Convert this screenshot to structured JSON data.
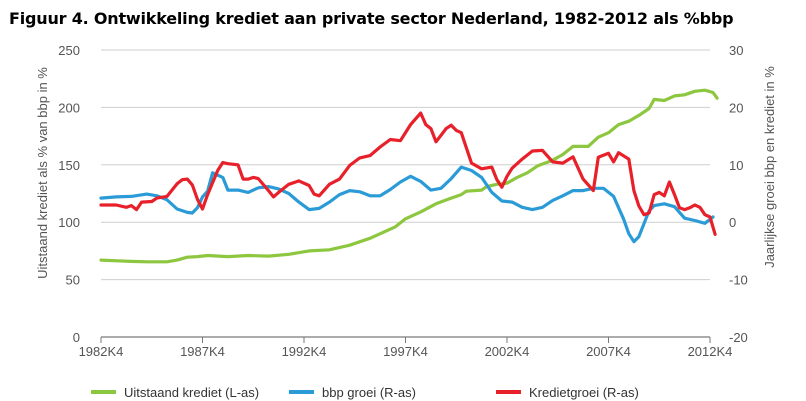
{
  "title": "Figuur 4. Ontwikkeling krediet aan private sector Nederland, 1982-2012 als %bbp",
  "chart_data": {
    "type": "line",
    "title": "Figuur 4. Ontwikkeling krediet aan private sector Nederland, 1982-2012 als %bbp",
    "xlabel": "",
    "ylabel_left": "Uitstaand krediet als % van bbp in %",
    "ylabel_right": "Jaarlijkse groei bbp en krediet in %",
    "x_ticks": [
      "1982K4",
      "1987K4",
      "1992K4",
      "1997K4",
      "2002K4",
      "2007K4",
      "2012K4"
    ],
    "ylim_left": [
      0,
      250
    ],
    "yticks_left": [
      0,
      50,
      100,
      150,
      200,
      250
    ],
    "ylim_right": [
      -20,
      30
    ],
    "yticks_right": [
      -20,
      -10,
      0,
      10,
      20,
      30
    ],
    "grid": "horizontal",
    "legend_position": "bottom",
    "series": [
      {
        "name": "Uitstaand krediet (L-as)",
        "axis": "left",
        "color": "#8dc63f",
        "points": [
          [
            1982.75,
            67
          ],
          [
            1984.0,
            66
          ],
          [
            1985.0,
            65.5
          ],
          [
            1986.0,
            65.5
          ],
          [
            1986.5,
            67
          ],
          [
            1987.0,
            69.5
          ],
          [
            1987.5,
            70
          ],
          [
            1988.0,
            71
          ],
          [
            1989.0,
            70
          ],
          [
            1990.0,
            71
          ],
          [
            1991.0,
            70.5
          ],
          [
            1992.0,
            72
          ],
          [
            1993.0,
            75
          ],
          [
            1994.0,
            76
          ],
          [
            1995.0,
            80
          ],
          [
            1996.0,
            86
          ],
          [
            1996.75,
            92
          ],
          [
            1997.25,
            96
          ],
          [
            1997.75,
            103
          ],
          [
            1998.5,
            109
          ],
          [
            1999.25,
            116
          ],
          [
            2000.0,
            121
          ],
          [
            2000.5,
            124
          ],
          [
            2000.75,
            127
          ],
          [
            2001.5,
            128
          ],
          [
            2001.75,
            131
          ],
          [
            2002.25,
            133
          ],
          [
            2002.75,
            134
          ],
          [
            2003.25,
            139
          ],
          [
            2003.75,
            143
          ],
          [
            2004.25,
            149
          ],
          [
            2005.0,
            154
          ],
          [
            2005.5,
            159
          ],
          [
            2006.0,
            166
          ],
          [
            2006.75,
            166
          ],
          [
            2007.25,
            174
          ],
          [
            2007.75,
            178
          ],
          [
            2008.25,
            185
          ],
          [
            2008.75,
            188
          ],
          [
            2009.25,
            193
          ],
          [
            2009.75,
            199
          ],
          [
            2010.0,
            207
          ],
          [
            2010.5,
            206
          ],
          [
            2011.0,
            210
          ],
          [
            2011.5,
            211
          ],
          [
            2012.0,
            214
          ],
          [
            2012.5,
            215
          ],
          [
            2012.9,
            213
          ],
          [
            2013.1,
            208
          ]
        ]
      },
      {
        "name": "bbp groei (R-as)",
        "axis": "right",
        "color": "#2b9bd8",
        "points": [
          [
            1982.75,
            4.2
          ],
          [
            1983.5,
            4.4
          ],
          [
            1984.25,
            4.5
          ],
          [
            1985.0,
            4.9
          ],
          [
            1985.5,
            4.6
          ],
          [
            1986.0,
            3.9
          ],
          [
            1986.5,
            2.3
          ],
          [
            1987.0,
            1.7
          ],
          [
            1987.25,
            1.6
          ],
          [
            1987.5,
            2.5
          ],
          [
            1987.75,
            4.4
          ],
          [
            1988.0,
            5.4
          ],
          [
            1988.25,
            8.6
          ],
          [
            1988.75,
            7.8
          ],
          [
            1989.0,
            5.6
          ],
          [
            1989.5,
            5.6
          ],
          [
            1990.0,
            5.2
          ],
          [
            1990.5,
            6.0
          ],
          [
            1991.0,
            6.2
          ],
          [
            1991.5,
            5.8
          ],
          [
            1992.0,
            5.0
          ],
          [
            1992.5,
            3.5
          ],
          [
            1993.0,
            2.2
          ],
          [
            1993.5,
            2.4
          ],
          [
            1994.0,
            3.5
          ],
          [
            1994.5,
            4.8
          ],
          [
            1995.0,
            5.5
          ],
          [
            1995.5,
            5.3
          ],
          [
            1996.0,
            4.6
          ],
          [
            1996.5,
            4.6
          ],
          [
            1997.0,
            5.7
          ],
          [
            1997.5,
            7.0
          ],
          [
            1998.0,
            8.0
          ],
          [
            1998.5,
            7.1
          ],
          [
            1999.0,
            5.6
          ],
          [
            1999.5,
            5.9
          ],
          [
            2000.0,
            7.6
          ],
          [
            2000.5,
            9.6
          ],
          [
            2001.0,
            9.0
          ],
          [
            2001.5,
            7.8
          ],
          [
            2002.0,
            5.2
          ],
          [
            2002.5,
            3.7
          ],
          [
            2003.0,
            3.5
          ],
          [
            2003.5,
            2.6
          ],
          [
            2004.0,
            2.2
          ],
          [
            2004.5,
            2.6
          ],
          [
            2005.0,
            3.8
          ],
          [
            2005.5,
            4.6
          ],
          [
            2006.0,
            5.5
          ],
          [
            2006.5,
            5.5
          ],
          [
            2007.0,
            5.9
          ],
          [
            2007.5,
            5.9
          ],
          [
            2008.0,
            4.5
          ],
          [
            2008.5,
            0.5
          ],
          [
            2008.75,
            -2.0
          ],
          [
            2009.0,
            -3.4
          ],
          [
            2009.25,
            -2.5
          ],
          [
            2009.75,
            2.0
          ],
          [
            2010.0,
            2.9
          ],
          [
            2010.5,
            3.2
          ],
          [
            2011.0,
            2.7
          ],
          [
            2011.5,
            0.7
          ],
          [
            2012.0,
            0.3
          ],
          [
            2012.5,
            -0.2
          ],
          [
            2012.9,
            0.9
          ]
        ]
      },
      {
        "name": "Kredietgroei (R-as)",
        "axis": "right",
        "color": "#e8202a",
        "points": [
          [
            1982.75,
            3.0
          ],
          [
            1983.5,
            3.0
          ],
          [
            1984.0,
            2.6
          ],
          [
            1984.25,
            2.9
          ],
          [
            1984.5,
            2.2
          ],
          [
            1984.75,
            3.5
          ],
          [
            1985.25,
            3.6
          ],
          [
            1985.5,
            4.2
          ],
          [
            1986.0,
            4.5
          ],
          [
            1986.5,
            6.7
          ],
          [
            1986.75,
            7.4
          ],
          [
            1987.0,
            7.5
          ],
          [
            1987.25,
            6.5
          ],
          [
            1987.5,
            4.0
          ],
          [
            1987.75,
            2.3
          ],
          [
            1988.0,
            4.8
          ],
          [
            1988.5,
            9.0
          ],
          [
            1988.75,
            10.4
          ],
          [
            1989.0,
            10.2
          ],
          [
            1989.5,
            10.0
          ],
          [
            1989.75,
            7.5
          ],
          [
            1990.0,
            7.5
          ],
          [
            1990.25,
            7.8
          ],
          [
            1990.5,
            7.6
          ],
          [
            1991.0,
            5.5
          ],
          [
            1991.25,
            4.4
          ],
          [
            1991.5,
            5.2
          ],
          [
            1992.0,
            6.6
          ],
          [
            1992.5,
            7.2
          ],
          [
            1993.0,
            6.4
          ],
          [
            1993.25,
            4.9
          ],
          [
            1993.5,
            4.6
          ],
          [
            1994.0,
            6.6
          ],
          [
            1994.5,
            7.5
          ],
          [
            1995.0,
            9.9
          ],
          [
            1995.5,
            11.2
          ],
          [
            1996.0,
            11.6
          ],
          [
            1996.5,
            13.1
          ],
          [
            1997.0,
            14.4
          ],
          [
            1997.5,
            14.2
          ],
          [
            1998.0,
            17.0
          ],
          [
            1998.5,
            19.0
          ],
          [
            1998.75,
            17.0
          ],
          [
            1999.0,
            16.3
          ],
          [
            1999.25,
            14.0
          ],
          [
            1999.75,
            16.3
          ],
          [
            2000.0,
            16.9
          ],
          [
            2000.25,
            16.0
          ],
          [
            2000.5,
            15.6
          ],
          [
            2001.0,
            10.3
          ],
          [
            2001.5,
            9.3
          ],
          [
            2002.0,
            9.6
          ],
          [
            2002.25,
            7.4
          ],
          [
            2002.5,
            6.1
          ],
          [
            2002.75,
            8.0
          ],
          [
            2003.0,
            9.4
          ],
          [
            2003.5,
            11.0
          ],
          [
            2004.0,
            12.4
          ],
          [
            2004.5,
            12.5
          ],
          [
            2005.0,
            10.5
          ],
          [
            2005.5,
            10.3
          ],
          [
            2006.0,
            11.4
          ],
          [
            2006.5,
            7.5
          ],
          [
            2007.0,
            5.5
          ],
          [
            2007.25,
            11.3
          ],
          [
            2007.75,
            12.0
          ],
          [
            2008.0,
            10.5
          ],
          [
            2008.25,
            12.1
          ],
          [
            2008.75,
            11.0
          ],
          [
            2009.0,
            5.5
          ],
          [
            2009.25,
            2.8
          ],
          [
            2009.5,
            1.3
          ],
          [
            2009.75,
            1.6
          ],
          [
            2010.0,
            4.8
          ],
          [
            2010.25,
            5.2
          ],
          [
            2010.5,
            4.6
          ],
          [
            2010.75,
            7.0
          ],
          [
            2011.0,
            4.8
          ],
          [
            2011.25,
            2.5
          ],
          [
            2011.5,
            2.2
          ],
          [
            2011.75,
            2.5
          ],
          [
            2012.0,
            3.0
          ],
          [
            2012.25,
            2.6
          ],
          [
            2012.5,
            1.3
          ],
          [
            2012.75,
            0.9
          ],
          [
            2013.0,
            -2.1
          ]
        ]
      }
    ]
  }
}
